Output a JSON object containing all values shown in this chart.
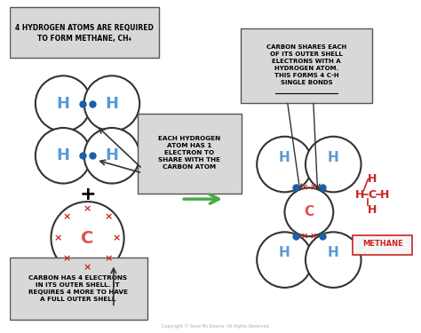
{
  "bg_color": "#ffffff",
  "title_box_text": "4 HYDROGEN ATOMS ARE REQUIRED\nTO FORM METHANE, CH₄",
  "h_label_color": "#5b9bd5",
  "c_label_color": "#e05050",
  "electron_dot_color": "#1a5fa8",
  "electron_cross_color": "#cc2222",
  "circle_edge_color": "#333333",
  "box_bg": "#d8d8d8",
  "box_edge": "#555555",
  "arrow_color": "#333333",
  "green_arrow_color": "#4aaa44",
  "methane_color": "#cc2222",
  "red_bond_color": "#cc2222",
  "note1": "EACH HYDROGEN\nATOM HAS 1\nELECTRON TO\nSHARE WITH THE\nCARBON ATOM",
  "note2": "CARBON SHARES EACH\nOF ITS OUTER SHELL\nELECTRONS WITH A\nHYDROGEN ATOM.\nTHIS FORMS 4 C-H\nSINGLE BONDS",
  "note3": "CARBON HAS 4 ELECTRONS\nIN ITS OUTER SHELL. IT\nREQUIRES 4 MORE TO HAVE\nA FULL OUTER SHELL",
  "copyright": "Copyright © Save My Exams. All Rights Reserved"
}
